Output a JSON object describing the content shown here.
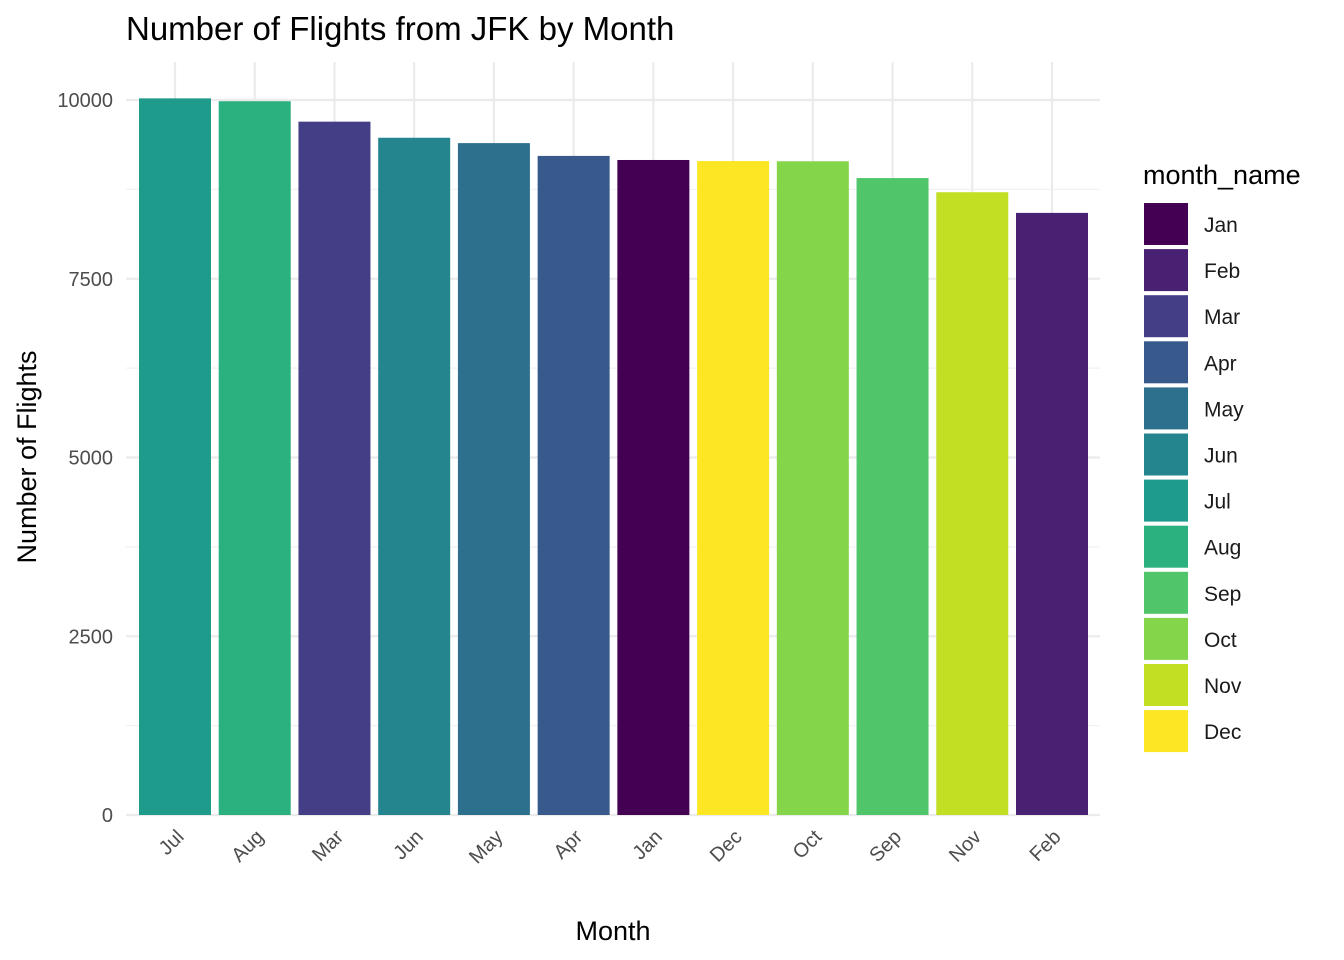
{
  "chart_data": {
    "type": "bar",
    "title": "Number of Flights from JFK by Month",
    "xlabel": "Month",
    "ylabel": "Number of Flights",
    "categories": [
      "Jul",
      "Aug",
      "Mar",
      "Jun",
      "May",
      "Apr",
      "Jan",
      "Dec",
      "Oct",
      "Sep",
      "Nov",
      "Feb"
    ],
    "values": [
      10023,
      9983,
      9697,
      9472,
      9397,
      9218,
      9161,
      9146,
      9143,
      8908,
      8710,
      8421
    ],
    "ylim": [
      0,
      10500
    ],
    "yticks": [
      "0",
      "2500",
      "5000",
      "7500",
      "10000"
    ],
    "grid": true,
    "legend": {
      "title": "month_name",
      "position": "right",
      "entries": [
        {
          "label": "Jan",
          "color": "#440154"
        },
        {
          "label": "Feb",
          "color": "#482173"
        },
        {
          "label": "Mar",
          "color": "#433E85"
        },
        {
          "label": "Apr",
          "color": "#38598C"
        },
        {
          "label": "May",
          "color": "#2D708E"
        },
        {
          "label": "Jun",
          "color": "#25858E"
        },
        {
          "label": "Jul",
          "color": "#1E9B8A"
        },
        {
          "label": "Aug",
          "color": "#2BB07F"
        },
        {
          "label": "Sep",
          "color": "#51C56A"
        },
        {
          "label": "Oct",
          "color": "#85D54A"
        },
        {
          "label": "Nov",
          "color": "#C2DF23"
        },
        {
          "label": "Dec",
          "color": "#FDE725"
        }
      ]
    }
  }
}
